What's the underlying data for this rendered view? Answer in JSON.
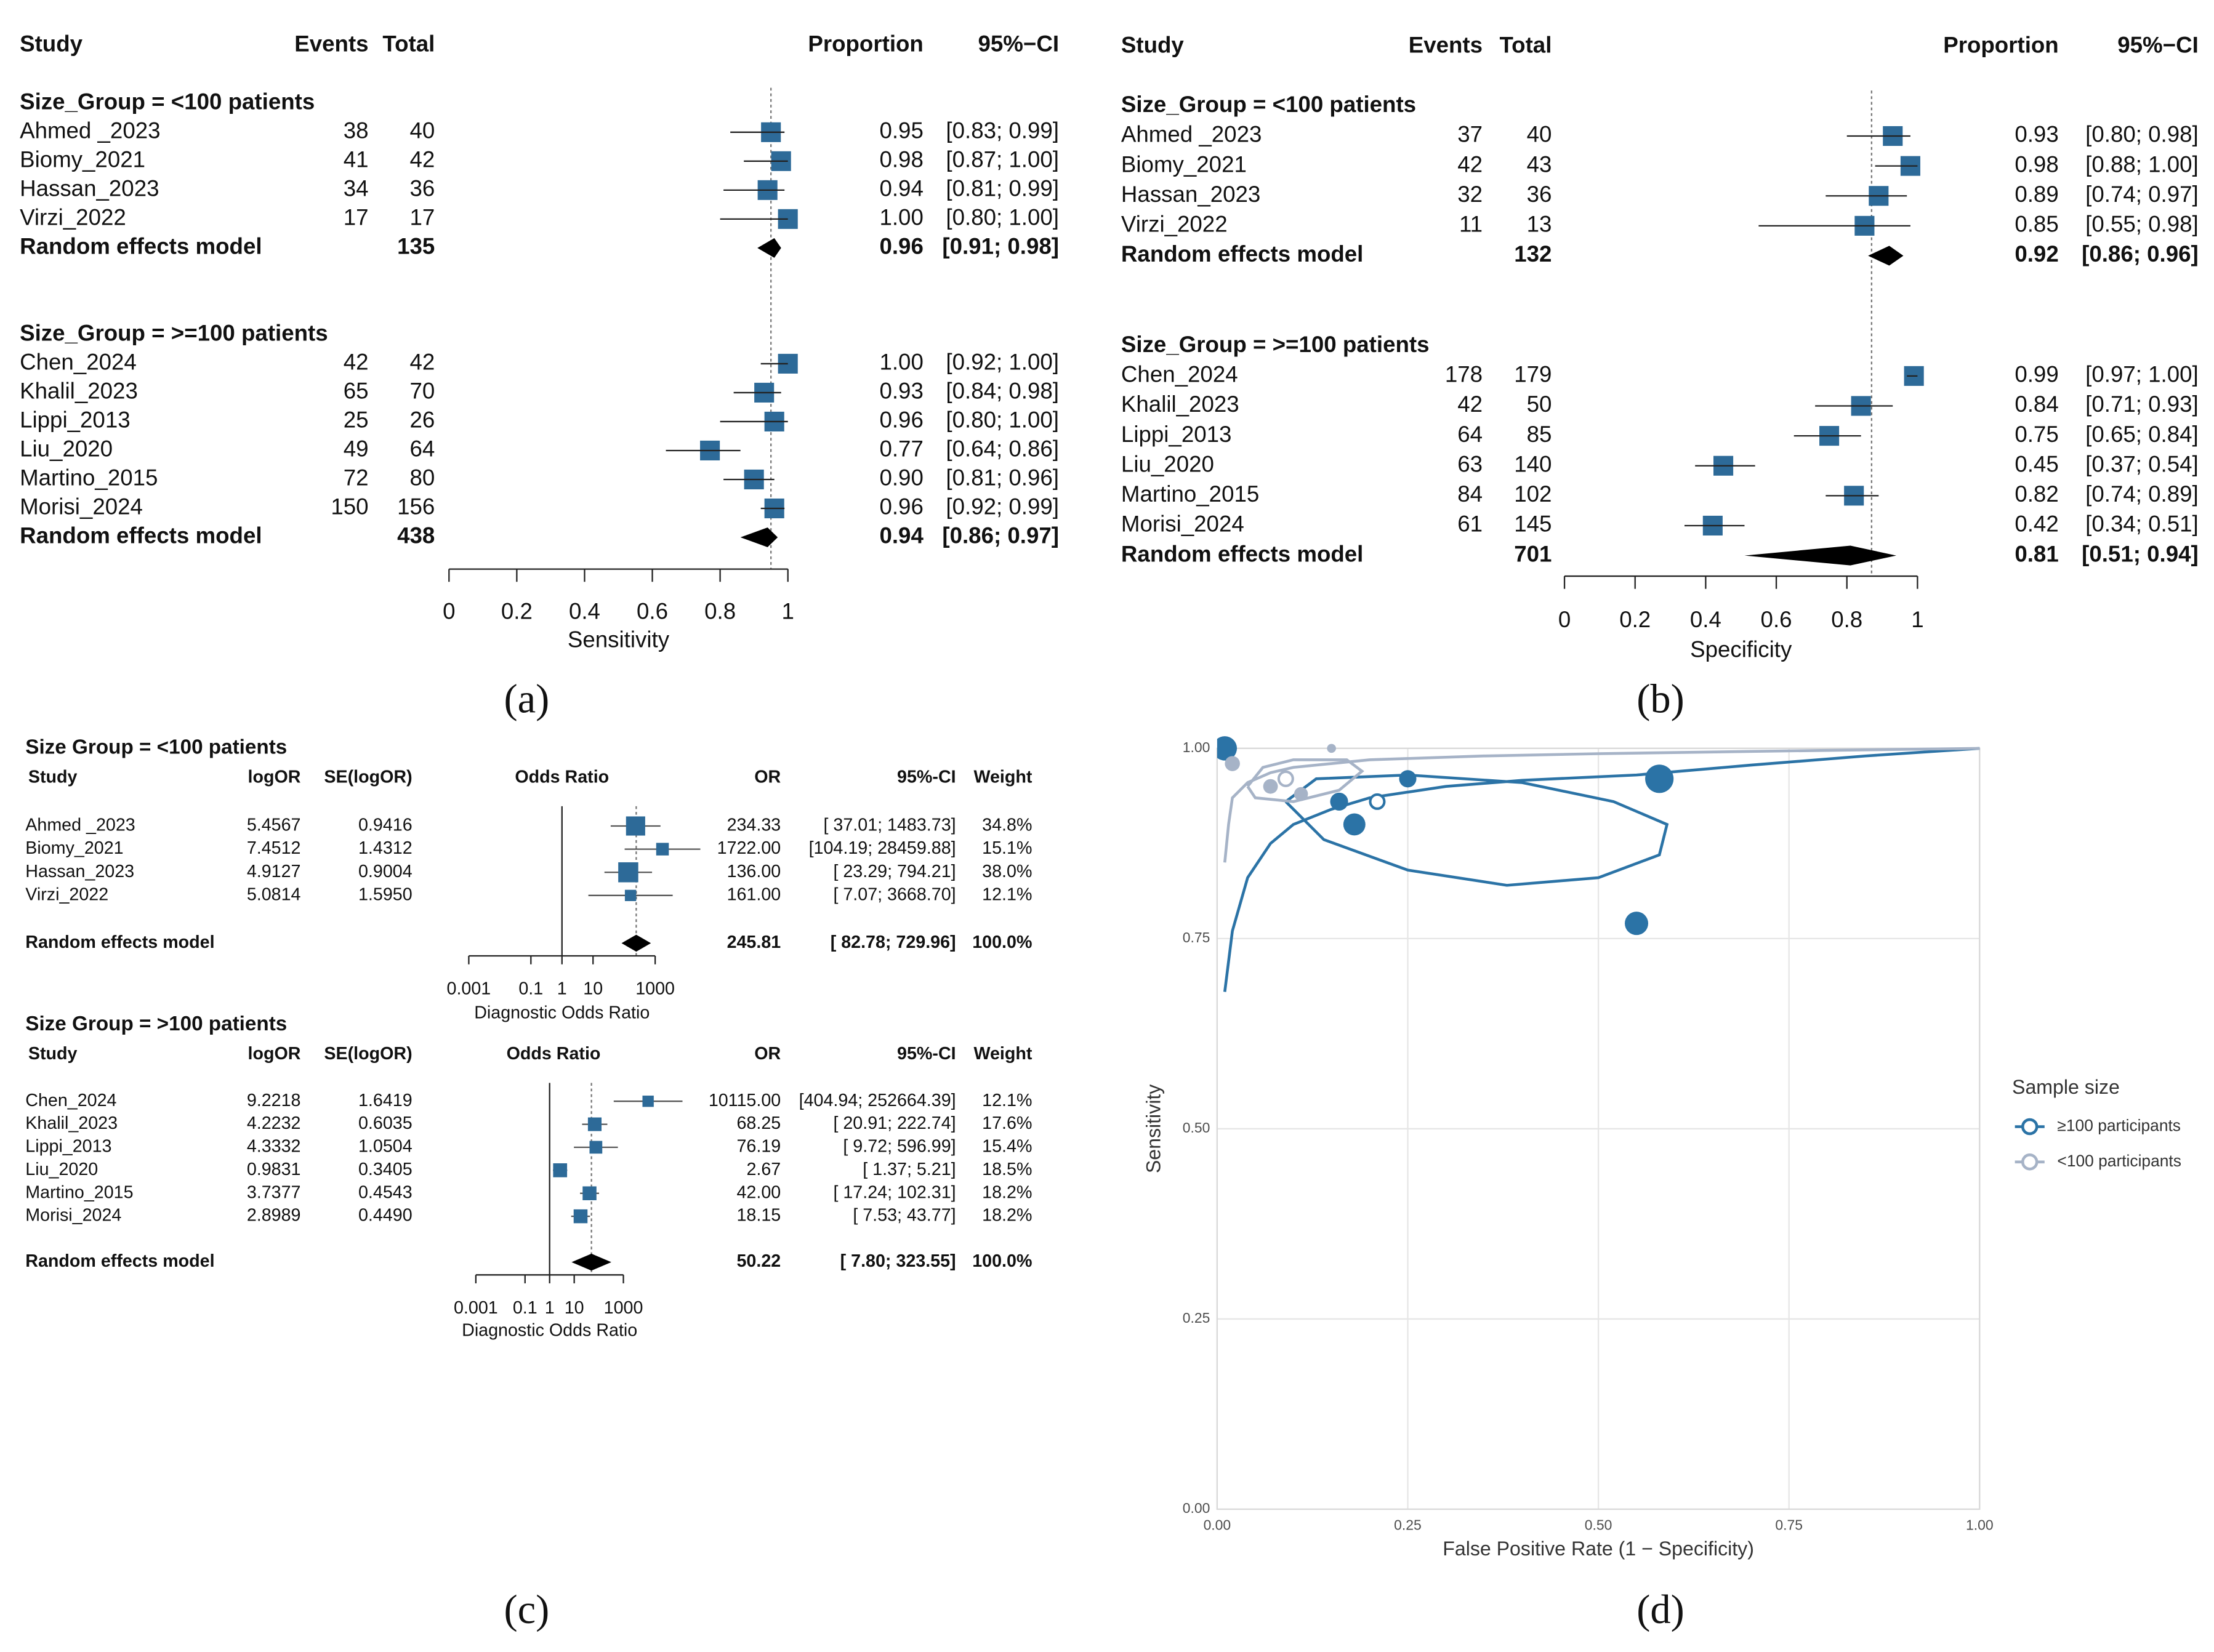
{
  "chart_data": [
    {
      "type": "forest",
      "panel_label": "(a)",
      "columns": [
        "Study",
        "Events",
        "Total",
        "Proportion",
        "95%−CI"
      ],
      "xlabel": "Sensitivity",
      "xlim": [
        0,
        1
      ],
      "xticks": [
        0,
        0.2,
        0.4,
        0.6,
        0.8,
        1
      ],
      "reference_line": 0.95,
      "color": "#2d6a98",
      "groups": [
        {
          "title": "Size_Group = <100 patients",
          "studies": [
            {
              "name": "Ahmed _2023",
              "events": 38,
              "total": 40,
              "proportion": 0.95,
              "label": "0.95",
              "ci": [
                0.83,
                0.99
              ],
              "ci_label": "[0.83; 0.99]"
            },
            {
              "name": "Biomy_2021",
              "events": 41,
              "total": 42,
              "proportion": 0.98,
              "label": "0.98",
              "ci": [
                0.87,
                1.0
              ],
              "ci_label": "[0.87; 1.00]"
            },
            {
              "name": "Hassan_2023",
              "events": 34,
              "total": 36,
              "proportion": 0.94,
              "label": "0.94",
              "ci": [
                0.81,
                0.99
              ],
              "ci_label": "[0.81; 0.99]"
            },
            {
              "name": "Virzi_2022",
              "events": 17,
              "total": 17,
              "proportion": 1.0,
              "label": "1.00",
              "ci": [
                0.8,
                1.0
              ],
              "ci_label": "[0.80; 1.00]"
            }
          ],
          "summary": {
            "name": "Random effects model",
            "total": 135,
            "proportion": 0.96,
            "label": "0.96",
            "ci": [
              0.91,
              0.98
            ],
            "ci_label": "[0.91; 0.98]"
          }
        },
        {
          "title": "Size_Group = >=100 patients",
          "studies": [
            {
              "name": "Chen_2024",
              "events": 42,
              "total": 42,
              "proportion": 1.0,
              "label": "1.00",
              "ci": [
                0.92,
                1.0
              ],
              "ci_label": "[0.92; 1.00]"
            },
            {
              "name": "Khalil_2023",
              "events": 65,
              "total": 70,
              "proportion": 0.93,
              "label": "0.93",
              "ci": [
                0.84,
                0.98
              ],
              "ci_label": "[0.84; 0.98]"
            },
            {
              "name": "Lippi_2013",
              "events": 25,
              "total": 26,
              "proportion": 0.96,
              "label": "0.96",
              "ci": [
                0.8,
                1.0
              ],
              "ci_label": "[0.80; 1.00]"
            },
            {
              "name": "Liu_2020",
              "events": 49,
              "total": 64,
              "proportion": 0.77,
              "label": "0.77",
              "ci": [
                0.64,
                0.86
              ],
              "ci_label": "[0.64; 0.86]"
            },
            {
              "name": "Martino_2015",
              "events": 72,
              "total": 80,
              "proportion": 0.9,
              "label": "0.90",
              "ci": [
                0.81,
                0.96
              ],
              "ci_label": "[0.81; 0.96]"
            },
            {
              "name": "Morisi_2024",
              "events": 150,
              "total": 156,
              "proportion": 0.96,
              "label": "0.96",
              "ci": [
                0.92,
                0.99
              ],
              "ci_label": "[0.92; 0.99]"
            }
          ],
          "summary": {
            "name": "Random effects model",
            "total": 438,
            "proportion": 0.94,
            "label": "0.94",
            "ci": [
              0.86,
              0.97
            ],
            "ci_label": "[0.86; 0.97]"
          }
        }
      ]
    },
    {
      "type": "forest",
      "panel_label": "(b)",
      "columns": [
        "Study",
        "Events",
        "Total",
        "Proportion",
        "95%−CI"
      ],
      "xlabel": "Specificity",
      "xlim": [
        0,
        1
      ],
      "xticks": [
        0,
        0.2,
        0.4,
        0.6,
        0.8,
        1
      ],
      "reference_line": 0.87,
      "color": "#2d6a98",
      "groups": [
        {
          "title": "Size_Group = <100 patients",
          "studies": [
            {
              "name": "Ahmed _2023",
              "events": 37,
              "total": 40,
              "proportion": 0.93,
              "label": "0.93",
              "ci": [
                0.8,
                0.98
              ],
              "ci_label": "[0.80; 0.98]"
            },
            {
              "name": "Biomy_2021",
              "events": 42,
              "total": 43,
              "proportion": 0.98,
              "label": "0.98",
              "ci": [
                0.88,
                1.0
              ],
              "ci_label": "[0.88; 1.00]"
            },
            {
              "name": "Hassan_2023",
              "events": 32,
              "total": 36,
              "proportion": 0.89,
              "label": "0.89",
              "ci": [
                0.74,
                0.97
              ],
              "ci_label": "[0.74; 0.97]"
            },
            {
              "name": "Virzi_2022",
              "events": 11,
              "total": 13,
              "proportion": 0.85,
              "label": "0.85",
              "ci": [
                0.55,
                0.98
              ],
              "ci_label": "[0.55; 0.98]"
            }
          ],
          "summary": {
            "name": "Random effects model",
            "total": 132,
            "proportion": 0.92,
            "label": "0.92",
            "ci": [
              0.86,
              0.96
            ],
            "ci_label": "[0.86; 0.96]"
          }
        },
        {
          "title": "Size_Group = >=100 patients",
          "studies": [
            {
              "name": "Chen_2024",
              "events": 178,
              "total": 179,
              "proportion": 0.99,
              "label": "0.99",
              "ci": [
                0.97,
                1.0
              ],
              "ci_label": "[0.97; 1.00]"
            },
            {
              "name": "Khalil_2023",
              "events": 42,
              "total": 50,
              "proportion": 0.84,
              "label": "0.84",
              "ci": [
                0.71,
                0.93
              ],
              "ci_label": "[0.71; 0.93]"
            },
            {
              "name": "Lippi_2013",
              "events": 64,
              "total": 85,
              "proportion": 0.75,
              "label": "0.75",
              "ci": [
                0.65,
                0.84
              ],
              "ci_label": "[0.65; 0.84]"
            },
            {
              "name": "Liu_2020",
              "events": 63,
              "total": 140,
              "proportion": 0.45,
              "label": "0.45",
              "ci": [
                0.37,
                0.54
              ],
              "ci_label": "[0.37; 0.54]"
            },
            {
              "name": "Martino_2015",
              "events": 84,
              "total": 102,
              "proportion": 0.82,
              "label": "0.82",
              "ci": [
                0.74,
                0.89
              ],
              "ci_label": "[0.74; 0.89]"
            },
            {
              "name": "Morisi_2024",
              "events": 61,
              "total": 145,
              "proportion": 0.42,
              "label": "0.42",
              "ci": [
                0.34,
                0.51
              ],
              "ci_label": "[0.34; 0.51]"
            }
          ],
          "summary": {
            "name": "Random effects model",
            "total": 701,
            "proportion": 0.81,
            "label": "0.81",
            "ci": [
              0.51,
              0.94
            ],
            "ci_label": "[0.51; 0.94]"
          }
        }
      ]
    },
    {
      "type": "forest_or",
      "panel_label": "(c)",
      "color": "#2d6a98",
      "groups": [
        {
          "title": "Size Group = <100 patients",
          "columns": [
            "Study",
            "logOR",
            "SE(logOR)",
            "Odds Ratio",
            "OR",
            "95%-CI",
            "Weight"
          ],
          "xlabel": "Diagnostic Odds Ratio",
          "xscale": "log",
          "xlim": [
            0.001,
            1000
          ],
          "xticks": [
            0.001,
            0.1,
            1,
            10,
            1000
          ],
          "null_line": 1,
          "studies": [
            {
              "name": "Ahmed _2023",
              "logor": 5.4567,
              "se": 0.9416,
              "or": 234.33,
              "or_label": "234.33",
              "ci": [
                37.01,
                1483.73
              ],
              "ci_label": "[ 37.01; 1483.73]",
              "weight": 34.8,
              "weight_label": "34.8%"
            },
            {
              "name": "Biomy_2021",
              "logor": 7.4512,
              "se": 1.4312,
              "or": 1722.0,
              "or_label": "1722.00",
              "ci": [
                104.19,
                28459.88
              ],
              "ci_label": "[104.19; 28459.88]",
              "weight": 15.1,
              "weight_label": "15.1%"
            },
            {
              "name": "Hassan_2023",
              "logor": 4.9127,
              "se": 0.9004,
              "or": 136.0,
              "or_label": "136.00",
              "ci": [
                23.29,
                794.21
              ],
              "ci_label": "[ 23.29; 794.21]",
              "weight": 38.0,
              "weight_label": "38.0%"
            },
            {
              "name": "Virzi_2022",
              "logor": 5.0814,
              "se": 1.595,
              "se_label": "1.5950",
              "or": 161.0,
              "or_label": "161.00",
              "ci": [
                7.07,
                3668.7
              ],
              "ci_label": "[ 7.07; 3668.70]",
              "weight": 12.1,
              "weight_label": "12.1%"
            }
          ],
          "summary": {
            "name": "Random effects model",
            "or": 245.81,
            "or_label": "245.81",
            "ci": [
              82.78,
              729.96
            ],
            "ci_label": "[ 82.78; 729.96]",
            "weight": 100.0,
            "weight_label": "100.0%"
          }
        },
        {
          "title": "Size Group = >100 patients",
          "columns": [
            "Study",
            "logOR",
            "SE(logOR)",
            "Odds Ratio",
            "OR",
            "95%-CI",
            "Weight"
          ],
          "xlabel": "Diagnostic Odds Ratio",
          "xscale": "log",
          "xlim": [
            0.001,
            1000
          ],
          "xticks": [
            0.001,
            0.1,
            1,
            10,
            1000
          ],
          "null_line": 1,
          "studies": [
            {
              "name": "Chen_2024",
              "logor": 9.2218,
              "se": 1.6419,
              "or": 10115.0,
              "or_label": "10115.00",
              "ci": [
                404.94,
                252664.39
              ],
              "ci_label": "[404.94; 252664.39]",
              "weight": 12.1,
              "weight_label": "12.1%"
            },
            {
              "name": "Khalil_2023",
              "logor": 4.2232,
              "se": 0.6035,
              "or": 68.25,
              "or_label": "68.25",
              "ci": [
                20.91,
                222.74
              ],
              "ci_label": "[ 20.91; 222.74]",
              "weight": 17.6,
              "weight_label": "17.6%"
            },
            {
              "name": "Lippi_2013",
              "logor": 4.3332,
              "se": 1.0504,
              "or": 76.19,
              "or_label": "76.19",
              "ci": [
                9.72,
                596.99
              ],
              "ci_label": "[ 9.72; 596.99]",
              "weight": 15.4,
              "weight_label": "15.4%"
            },
            {
              "name": "Liu_2020",
              "logor": 0.9831,
              "se": 0.3405,
              "or": 2.67,
              "or_label": "2.67",
              "ci": [
                1.37,
                5.21
              ],
              "ci_label": "[ 1.37; 5.21]",
              "weight": 18.5,
              "weight_label": "18.5%"
            },
            {
              "name": "Martino_2015",
              "logor": 3.7377,
              "se": 0.4543,
              "or": 42.0,
              "or_label": "42.00",
              "ci": [
                17.24,
                102.31
              ],
              "ci_label": "[ 17.24; 102.31]",
              "weight": 18.2,
              "weight_label": "18.2%"
            },
            {
              "name": "Morisi_2024",
              "logor": 2.8989,
              "se": 0.449,
              "se_label": "0.4490",
              "or": 18.15,
              "or_label": "18.15",
              "ci": [
                7.53,
                43.77
              ],
              "ci_label": "[ 7.53; 43.77]",
              "weight": 18.2,
              "weight_label": "18.2%"
            }
          ],
          "summary": {
            "name": "Random effects model",
            "or": 50.22,
            "or_label": "50.22",
            "ci": [
              7.8,
              323.55
            ],
            "ci_label": "[ 7.80; 323.55]",
            "weight": 100.0,
            "weight_label": "100.0%"
          }
        }
      ]
    },
    {
      "type": "scatter",
      "panel_label": "(d)",
      "xlabel": "False Positive Rate (1 − Specificity)",
      "ylabel": "Sensitivity",
      "xlim": [
        0,
        1
      ],
      "ylim": [
        0,
        1
      ],
      "grid": true,
      "xticks": [
        {
          "value": 0,
          "label": "0.00"
        },
        {
          "value": 0.25,
          "label": "0.25"
        },
        {
          "value": 0.5,
          "label": "0.50"
        },
        {
          "value": 0.75,
          "label": "0.75"
        },
        {
          "value": 1,
          "label": "1.00"
        }
      ],
      "yticks": [
        {
          "value": 0,
          "label": "0.00"
        },
        {
          "value": 0.25,
          "label": "0.25"
        },
        {
          "value": 0.5,
          "label": "0.50"
        },
        {
          "value": 0.75,
          "label": "0.75"
        },
        {
          "value": 1,
          "label": "1.00"
        }
      ],
      "legend_title": "Sample size",
      "legend": "right",
      "series": [
        {
          "name": "≥100 participants",
          "color": "#2b73a6",
          "x": [
            0.01,
            0.16,
            0.25,
            0.55,
            0.18,
            0.58
          ],
          "y": [
            1.0,
            0.93,
            0.96,
            0.77,
            0.9,
            0.96
          ],
          "sizes": [
            221,
            120,
            111,
            204,
            182,
            301
          ],
          "summary_x": 0.21,
          "summary_y": 0.93,
          "curve": {
            "x": [
              0.01,
              0.02,
              0.04,
              0.07,
              0.1,
              0.15,
              0.2,
              0.3,
              0.4,
              0.55,
              0.7,
              0.85,
              1.0
            ],
            "y": [
              0.68,
              0.76,
              0.83,
              0.875,
              0.9,
              0.92,
              0.935,
              0.95,
              0.958,
              0.965,
              0.978,
              0.99,
              1.0
            ]
          },
          "region": {
            "x": [
              0.09,
              0.13,
              0.25,
              0.4,
              0.52,
              0.59,
              0.58,
              0.5,
              0.38,
              0.25,
              0.14,
              0.09
            ],
            "y": [
              0.93,
              0.96,
              0.965,
              0.955,
              0.93,
              0.9,
              0.86,
              0.83,
              0.82,
              0.84,
              0.88,
              0.93
            ]
          }
        },
        {
          "name": "<100 participants",
          "color": "#a6b3c7",
          "x": [
            0.07,
            0.02,
            0.11,
            0.15
          ],
          "y": [
            0.95,
            0.98,
            0.94,
            1.0
          ],
          "sizes": [
            80,
            85,
            72,
            30
          ],
          "summary_x": 0.09,
          "summary_y": 0.96,
          "curve": {
            "x": [
              0.01,
              0.015,
              0.02,
              0.04,
              0.07,
              0.1,
              0.2,
              0.35,
              0.5,
              0.7,
              0.85,
              1.0
            ],
            "y": [
              0.85,
              0.9,
              0.935,
              0.955,
              0.968,
              0.975,
              0.985,
              0.99,
              0.993,
              0.996,
              0.998,
              1.0
            ]
          },
          "region": {
            "x": [
              0.04,
              0.06,
              0.1,
              0.17,
              0.19,
              0.16,
              0.1,
              0.05,
              0.04
            ],
            "y": [
              0.95,
              0.975,
              0.985,
              0.985,
              0.97,
              0.945,
              0.93,
              0.935,
              0.95
            ]
          }
        }
      ]
    }
  ]
}
